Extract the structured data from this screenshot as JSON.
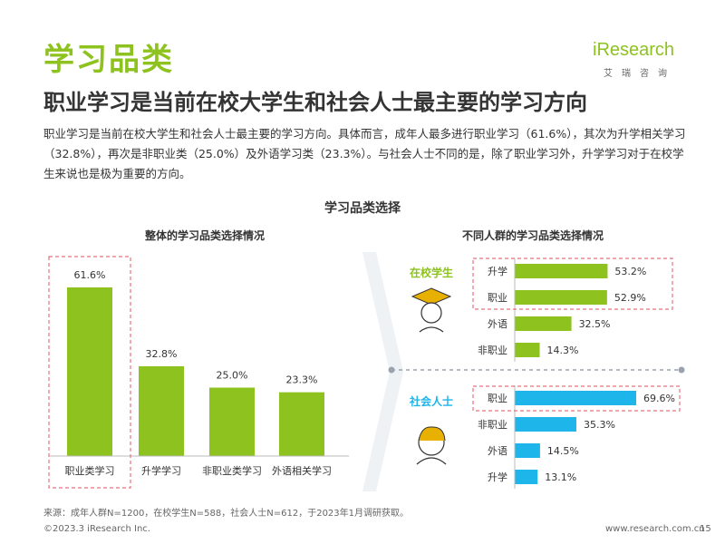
{
  "header": {
    "section_title": "学习品类",
    "headline": "职业学习是当前在校大学生和社会人士最主要的学习方向",
    "body": "职业学习是当前在校大学生和社会人士最主要的学习方向。具体而言，成年人最多进行职业学习（61.6%），其次为升学相关学习（32.8%），再次是非职业类（25.0%）及外语学习类（23.3%）。与社会人士不同的是，除了职业学习外，升学学习对于在校学生来说也是极为重要的方向。"
  },
  "logo": {
    "word": "iResearch",
    "sub": "艾瑞咨询"
  },
  "chart_main_title": "学习品类选择",
  "colors": {
    "green": "#8dc21f",
    "blue": "#1eb5ea",
    "highlight": "#e8707d"
  },
  "chart_data": [
    {
      "type": "bar",
      "title": "整体的学习品类选择情况",
      "categories": [
        "职业类学习",
        "升学学习",
        "非职业类学习",
        "外语相关学习"
      ],
      "values": [
        61.6,
        32.8,
        25.0,
        23.3
      ],
      "value_labels": [
        "61.6%",
        "32.8%",
        "25.0%",
        "23.3%"
      ],
      "highlight": "职业类学习"
    },
    {
      "type": "bar",
      "orientation": "horizontal",
      "title": "不同人群的学习品类选择情况",
      "groups": [
        {
          "name": "在校学生",
          "icon": "student-icon",
          "color": "#8dc21f",
          "categories": [
            "升学",
            "职业",
            "外语",
            "非职业"
          ],
          "values": [
            53.2,
            52.9,
            32.5,
            14.3
          ],
          "value_labels": [
            "53.2%",
            "52.9%",
            "32.5%",
            "14.3%"
          ],
          "highlight": [
            "升学",
            "职业"
          ]
        },
        {
          "name": "社会人士",
          "icon": "adult-icon",
          "color": "#1eb5ea",
          "categories": [
            "职业",
            "非职业",
            "外语",
            "升学"
          ],
          "values": [
            69.6,
            35.3,
            14.5,
            13.1
          ],
          "value_labels": [
            "69.6%",
            "35.3%",
            "14.5%",
            "13.1%"
          ],
          "highlight": [
            "职业"
          ]
        }
      ]
    }
  ],
  "footer": {
    "source": "来源：成年人群N=1200，在校学生N=588，社会人士N=612，于2023年1月调研获取。",
    "copyright": "©2023.3 iResearch Inc.",
    "url": "www.research.com.cn",
    "page": "15"
  }
}
